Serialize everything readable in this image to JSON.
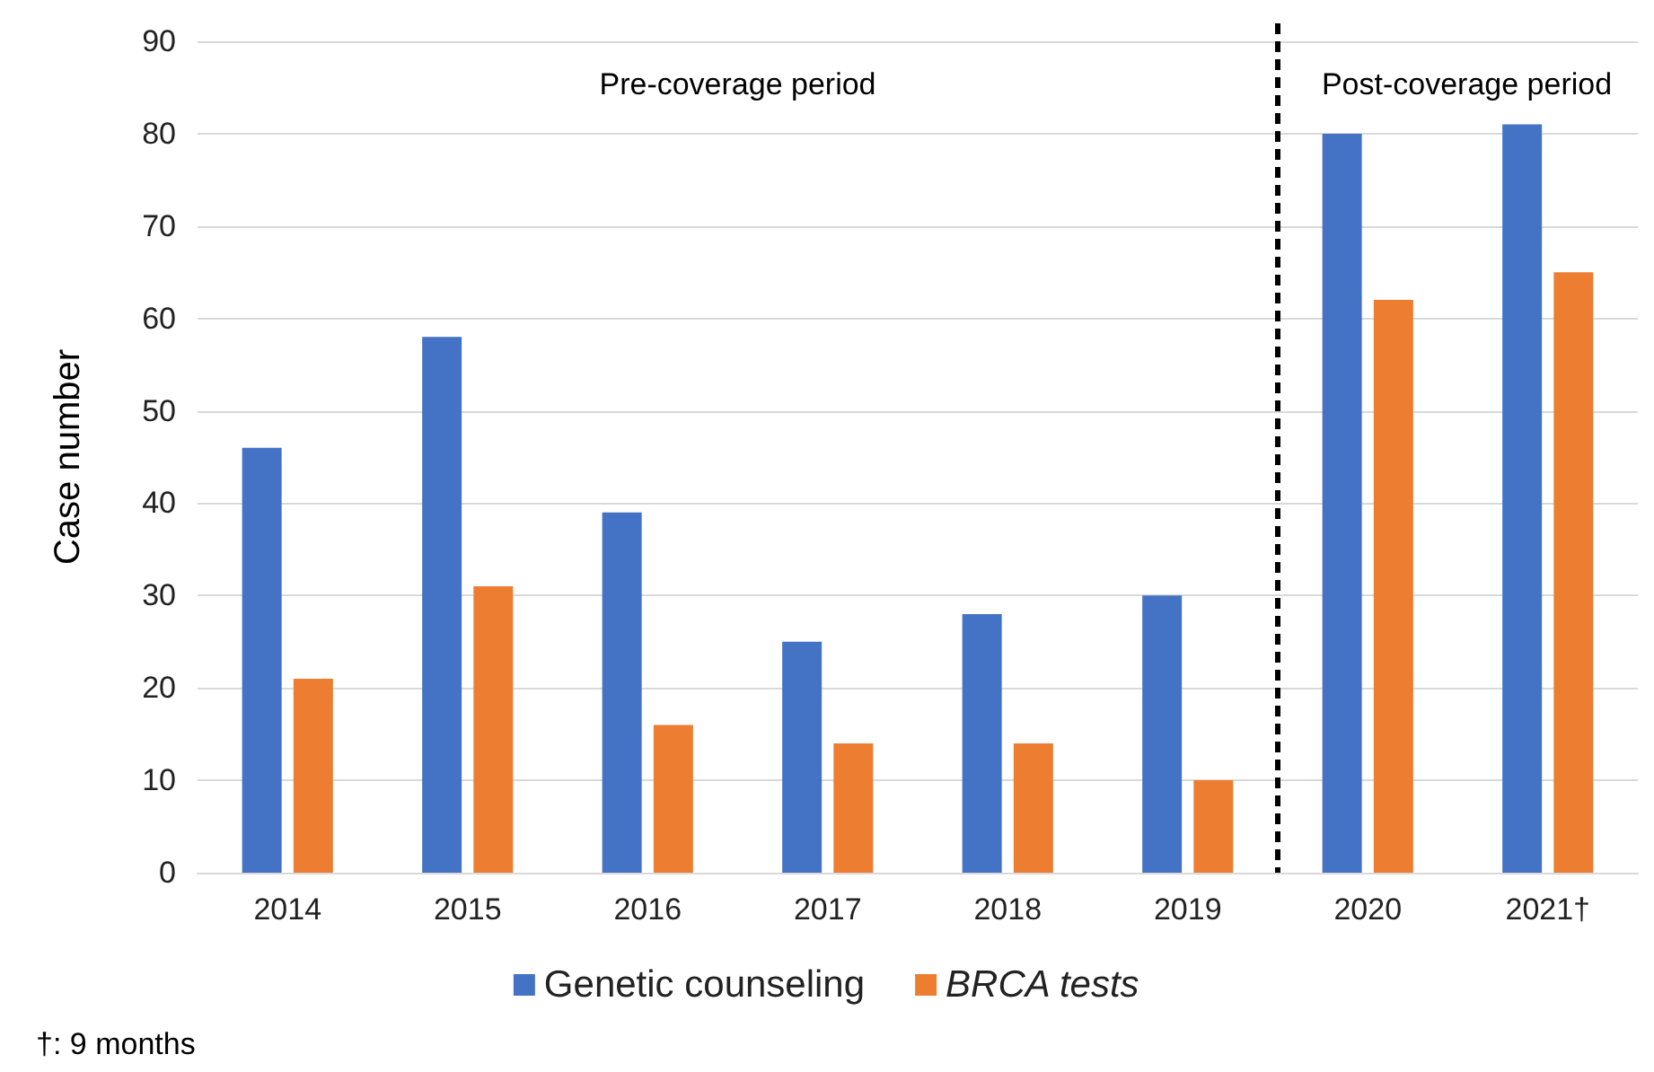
{
  "chart_data": {
    "type": "bar",
    "ylabel": "Case number",
    "categories": [
      "2014",
      "2015",
      "2016",
      "2017",
      "2018",
      "2019",
      "2020",
      "2021†"
    ],
    "series": [
      {
        "name": "Genetic counseling",
        "color": "#4472c4",
        "values": [
          46,
          58,
          39,
          25,
          28,
          30,
          80,
          81
        ]
      },
      {
        "name": "BRCA tests",
        "color": "#ed7d31",
        "values": [
          21,
          31,
          16,
          14,
          14,
          10,
          62,
          65
        ]
      }
    ],
    "ylim": [
      0,
      90
    ],
    "yticks": [
      0,
      10,
      20,
      30,
      40,
      50,
      60,
      70,
      80,
      90
    ],
    "grid": "y",
    "legend": "bottom",
    "annotations": [
      "Pre-coverage period",
      "Post-coverage period",
      "†: 9 months"
    ]
  }
}
